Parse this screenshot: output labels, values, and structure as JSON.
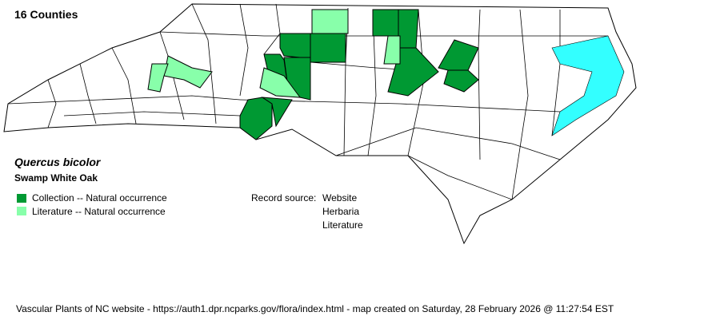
{
  "county_count": "16 Counties",
  "species": {
    "scientific_name": "Quercus bicolor",
    "common_name": "Swamp White Oak"
  },
  "legend": [
    {
      "label": "Collection -- Natural occurrence",
      "color": "#009933"
    },
    {
      "label": "Literature -- Natural occurrence",
      "color": "#88ffaa"
    }
  ],
  "record_source": {
    "label": "Record source:",
    "values": [
      "Website",
      "Herbaria",
      "Literature"
    ]
  },
  "water_color": "#33ffff",
  "footer": "Vascular Plants of NC website - https://auth1.dpr.ncparks.gov/flora/index.html - map created on Saturday, 28 February 2026 @ 11:27:54 EST"
}
